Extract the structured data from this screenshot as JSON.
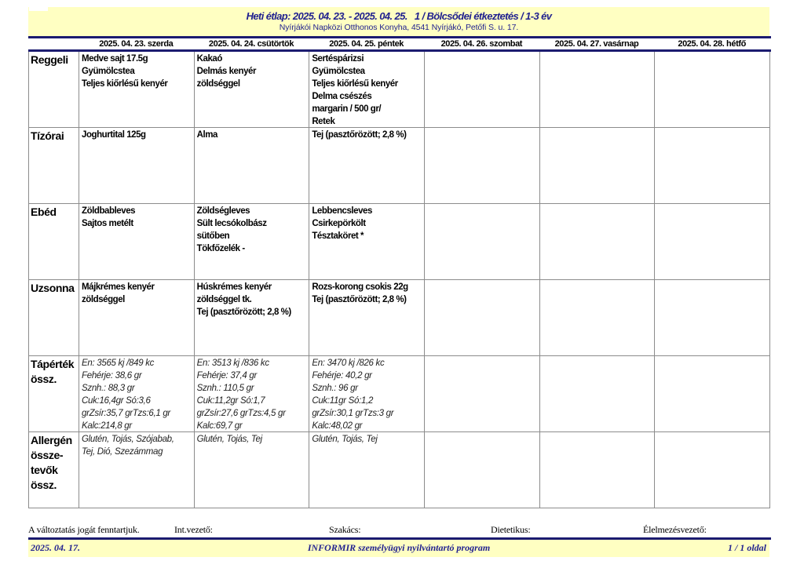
{
  "header": {
    "title": "Heti étlap: 2025. 04. 23. - 2025. 04. 25.   1 / Bölcsődei étkeztetés / 1-3 év",
    "subtitle": "Nyírjákói Napközi Otthonos Konyha, 4541 Nyírjákó, Petőfi S. u. 17."
  },
  "colors": {
    "navy_line": "#1b1b70",
    "navy_text": "#21218f",
    "band_yellow": "#ffffc2",
    "grid_gray": "#8c8c8c"
  },
  "table": {
    "day_headers": [
      "2025. 04. 23. szerda",
      "2025. 04. 24. csütörtök",
      "2025. 04. 25. péntek",
      "2025. 04. 26. szombat",
      "2025. 04. 27. vasárnap",
      "2025. 04. 28. hétfő"
    ],
    "rows": [
      {
        "label": "Reggeli",
        "cells": [
          "Medve sajt 17.5g\nGyümölcstea\nTeljes kiőrlésű kenyér",
          "Kakaó\nDelmás kenyér\nzöldséggel",
          "Sertéspárizsi\nGyümölcstea\nTeljes kiőrlésű kenyér\nDelma csészés\nmargarin / 500 gr/\nRetek",
          "",
          "",
          ""
        ]
      },
      {
        "label": "Tízórai",
        "cells": [
          "Joghurtital 125g",
          "Alma",
          "Tej (pasztőrözött; 2,8 %)",
          "",
          "",
          ""
        ]
      },
      {
        "label": "Ebéd",
        "cells": [
          "Zöldbableves\nSajtos metélt",
          "Zöldségleves\nSült lecsókolbász\nsütőben\nTökfőzelék -",
          "Lebbencsleves\nCsirkepörkölt\nTésztaköret *",
          "",
          "",
          ""
        ]
      },
      {
        "label": "Uzsonna",
        "cells": [
          "Májkrémes kenyér\nzöldséggel",
          "Húskrémes kenyér\nzöldséggel tk.\nTej (pasztőrözött; 2,8 %)",
          "Rozs-korong csokis 22g\nTej (pasztőrözött; 2,8 %)",
          "",
          "",
          ""
        ]
      },
      {
        "label": "Tápérték\nössz.",
        "cells": [
          "En: 3565 kj /849 kc\nFehérje: 38,6 gr\nSznh.: 88,3 gr\nCuk:16,4gr Só:3,6\ngrZsír:35,7 grTzs:6,1 gr\nKalc:214,8 gr",
          "En: 3513 kj /836 kc\nFehérje: 37,4 gr\nSznh.: 110,5 gr\nCuk:11,2gr Só:1,7\ngrZsír:27,6 grTzs:4,5 gr\nKalc:69,7 gr",
          "En: 3470 kj /826 kc\nFehérje: 40,2 gr\nSznh.: 96 gr\nCuk:11gr Só:1,2\ngrZsír:30,1 grTzs:3 gr\nKalc:48,02 gr",
          "",
          "",
          ""
        ]
      },
      {
        "label": "Allergén\nössze-\ntevők\nössz.",
        "cells": [
          "Glutén, Tojás, Szójabab,\nTej, Dió, Szezámmag",
          "Glutén, Tojás, Tej",
          "Glutén, Tojás, Tej",
          "",
          "",
          ""
        ]
      }
    ]
  },
  "footer": {
    "disclaimer": "A változtatás jogát fenntartjuk.",
    "signature_labels": [
      "Int.vezető:",
      "Szakács:",
      "Dietetikus:",
      "Élelmezésvezető:"
    ],
    "date": "2025. 04. 17.",
    "program": "INFORMIR személyügyi nyilvántartó program",
    "page_number": "1 / 1 oldal"
  }
}
